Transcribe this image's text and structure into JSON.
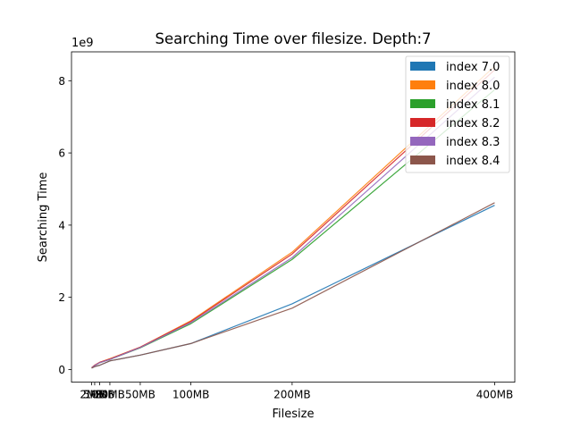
{
  "chart_data": {
    "type": "area",
    "title": "Searching Time over filesize. Depth:7",
    "xlabel": "Filesize",
    "ylabel": "Searching Time",
    "y_offset_label": "1e9",
    "x_ticks": [
      {
        "value": 2,
        "label": "2MB"
      },
      {
        "value": 5,
        "label": "5MB"
      },
      {
        "value": 10,
        "label": "10MB"
      },
      {
        "value": 20,
        "label": "20MB"
      },
      {
        "value": 50,
        "label": "50MB"
      },
      {
        "value": 100,
        "label": "100MB"
      },
      {
        "value": 200,
        "label": "200MB"
      },
      {
        "value": 400,
        "label": "400MB"
      }
    ],
    "y_ticks": [
      0,
      2,
      4,
      6,
      8
    ],
    "xlim": [
      -17.9,
      419.9
    ],
    "ylim": [
      -0.35,
      8.8
    ],
    "x": [
      2,
      5,
      10,
      20,
      50,
      100,
      200,
      400
    ],
    "series": [
      {
        "name": "index 7.0",
        "color": "#1f77b4",
        "values": [
          0.04,
          0.08,
          0.12,
          0.24,
          0.4,
          0.72,
          1.82,
          4.55
        ]
      },
      {
        "name": "index 8.0",
        "color": "#ff7f0e",
        "values": [
          0.05,
          0.12,
          0.2,
          0.3,
          0.62,
          1.35,
          3.25,
          8.4
        ]
      },
      {
        "name": "index 8.1",
        "color": "#2ca02c",
        "values": [
          0.05,
          0.11,
          0.19,
          0.28,
          0.6,
          1.27,
          3.05,
          7.75
        ]
      },
      {
        "name": "index 8.2",
        "color": "#d62728",
        "values": [
          0.05,
          0.12,
          0.2,
          0.29,
          0.62,
          1.33,
          3.2,
          8.3
        ]
      },
      {
        "name": "index 8.3",
        "color": "#9467bd",
        "values": [
          0.05,
          0.11,
          0.19,
          0.28,
          0.61,
          1.3,
          3.1,
          8.1
        ]
      },
      {
        "name": "index 8.4",
        "color": "#8c564b",
        "values": [
          0.04,
          0.08,
          0.12,
          0.24,
          0.4,
          0.72,
          1.7,
          4.62
        ]
      }
    ],
    "grid": false,
    "legend_position": "top-right"
  }
}
